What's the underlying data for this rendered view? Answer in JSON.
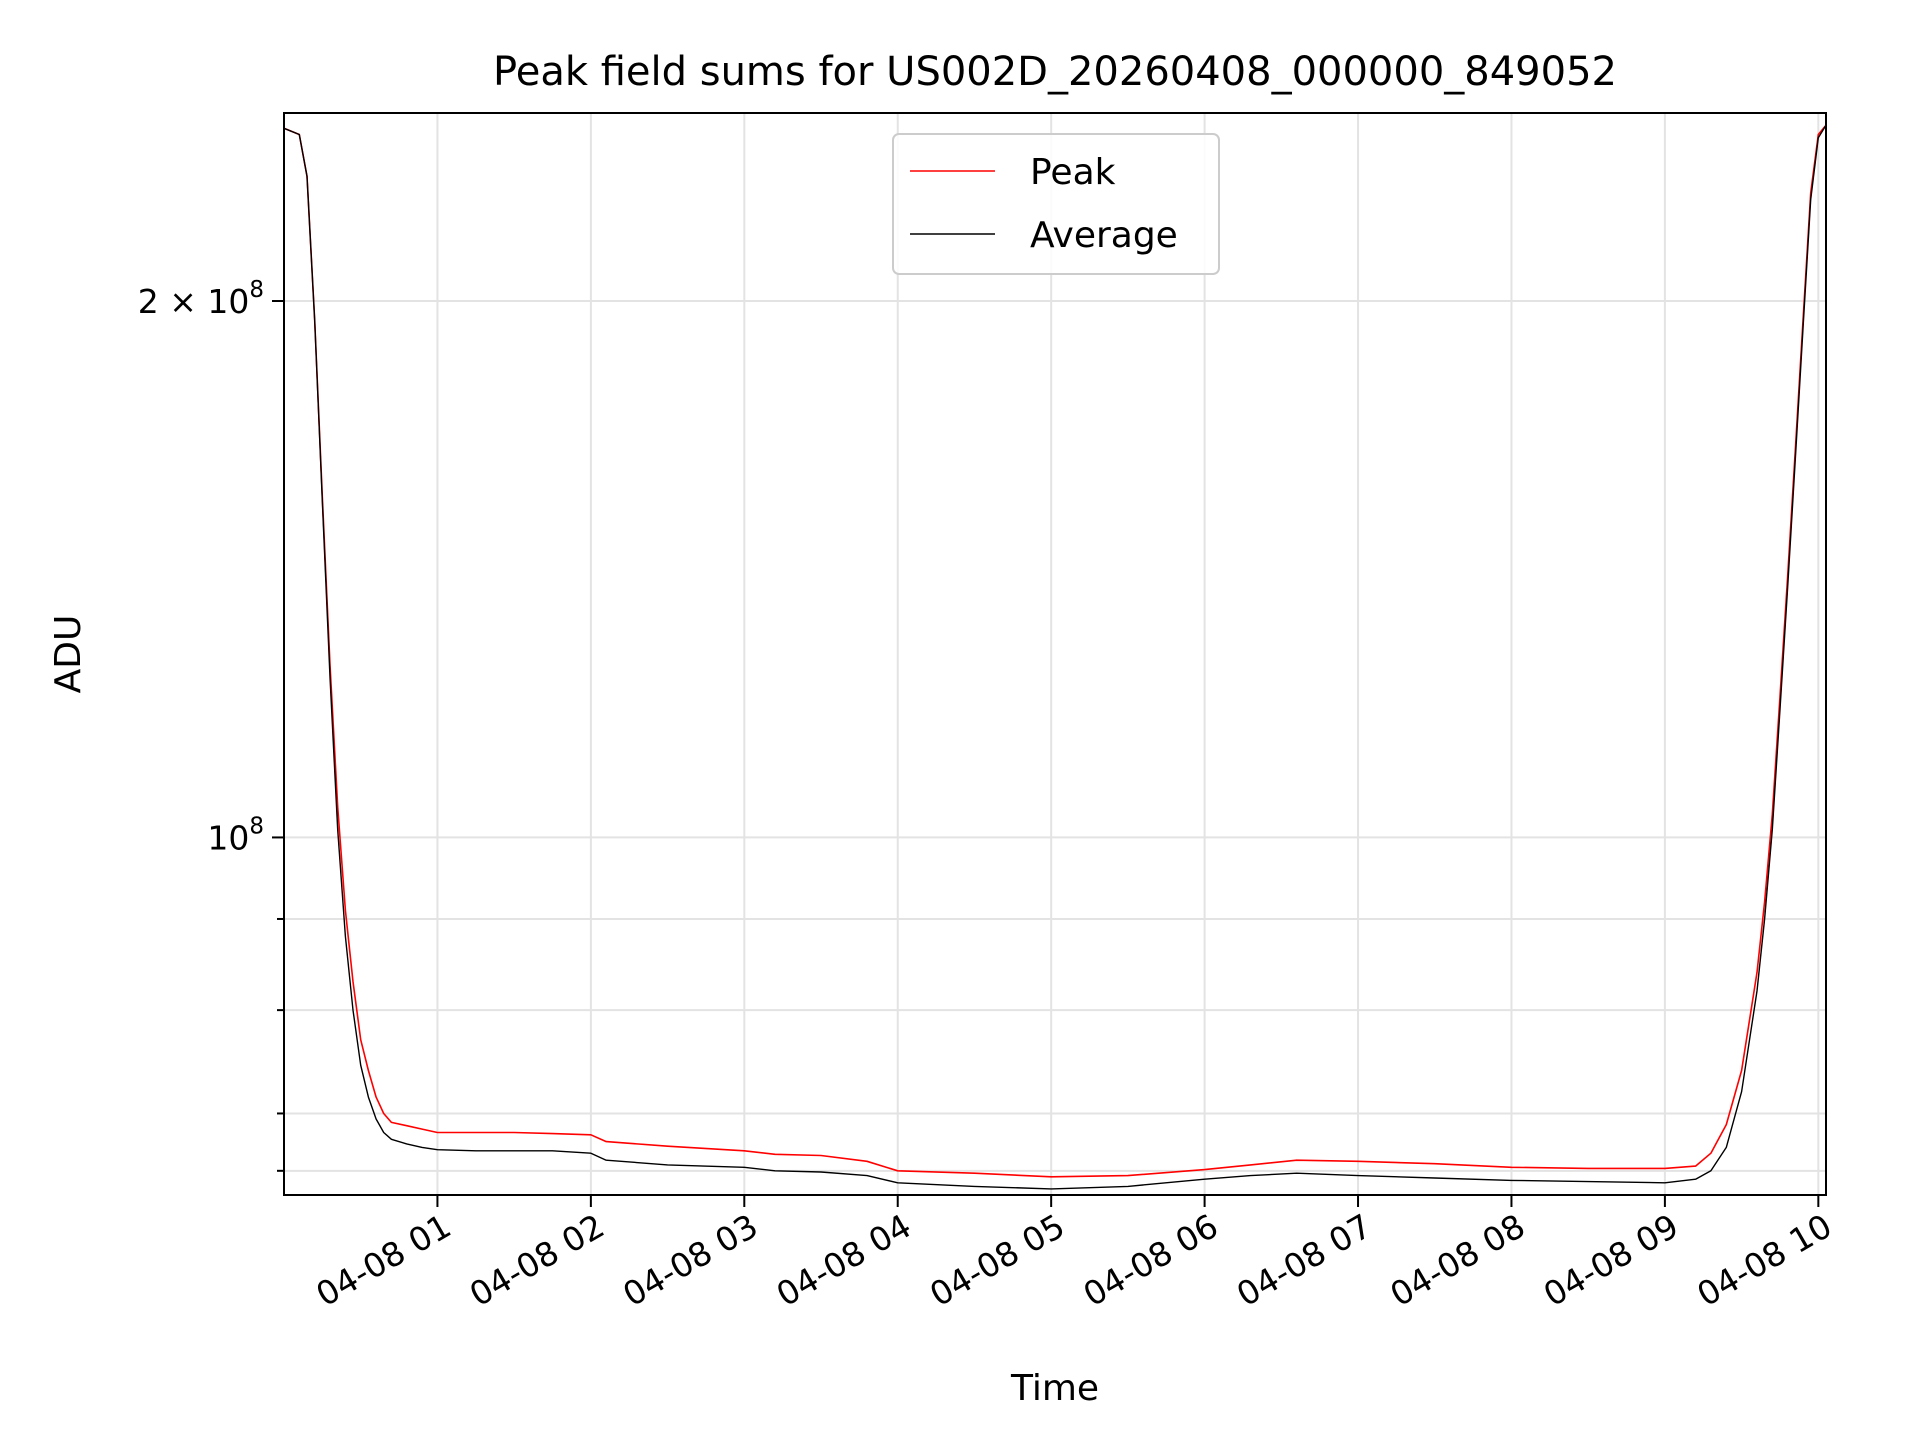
{
  "chart_data": {
    "type": "line",
    "title": "Peak field sums for US002D_20260408_000000_849052",
    "xlabel": "Time",
    "ylabel": "ADU",
    "yscale": "log",
    "grid": true,
    "legend_position": "top-center",
    "x_unit": "hours after 04-08 00:00",
    "xlim": [
      0.0,
      10.05
    ],
    "ylim": [
      63000000,
      255000000
    ],
    "x_ticks": [
      {
        "value": 1,
        "label": "04-08 01"
      },
      {
        "value": 2,
        "label": "04-08 02"
      },
      {
        "value": 3,
        "label": "04-08 03"
      },
      {
        "value": 4,
        "label": "04-08 04"
      },
      {
        "value": 5,
        "label": "04-08 05"
      },
      {
        "value": 6,
        "label": "04-08 06"
      },
      {
        "value": 7,
        "label": "04-08 07"
      },
      {
        "value": 8,
        "label": "04-08 08"
      },
      {
        "value": 9,
        "label": "04-08 09"
      },
      {
        "value": 10,
        "label": "04-08 10"
      }
    ],
    "y_major_ticks": [
      {
        "value": 100000000,
        "base": "10",
        "exp": "8"
      },
      {
        "value": 200000000,
        "base": "2 × 10",
        "exp": "8"
      }
    ],
    "y_minor_ticks": [
      65000000,
      70000000,
      80000000,
      90000000
    ],
    "series": [
      {
        "name": "Peak",
        "color": "#ff0000",
        "x": [
          0.0,
          0.1,
          0.15,
          0.2,
          0.25,
          0.3,
          0.35,
          0.4,
          0.45,
          0.5,
          0.55,
          0.6,
          0.65,
          0.7,
          0.8,
          0.9,
          1.0,
          1.25,
          1.5,
          1.75,
          2.0,
          2.1,
          2.5,
          3.0,
          3.2,
          3.5,
          3.8,
          4.0,
          4.5,
          5.0,
          5.5,
          6.0,
          6.3,
          6.6,
          7.0,
          7.5,
          8.0,
          8.5,
          9.0,
          9.2,
          9.3,
          9.4,
          9.5,
          9.6,
          9.65,
          9.7,
          9.75,
          9.8,
          9.85,
          9.9,
          9.95,
          10.0,
          10.05
        ],
        "values": [
          250000000,
          248000000,
          235000000,
          195000000,
          155000000,
          125000000,
          104000000,
          91000000,
          83000000,
          77000000,
          74000000,
          71500000,
          70000000,
          69200000,
          68900000,
          68600000,
          68300000,
          68300000,
          68300000,
          68200000,
          68100000,
          67500000,
          67100000,
          66700000,
          66400000,
          66300000,
          65800000,
          65000000,
          64800000,
          64500000,
          64600000,
          65100000,
          65500000,
          65900000,
          65800000,
          65600000,
          65300000,
          65200000,
          65200000,
          65400000,
          66500000,
          69000000,
          74000000,
          84000000,
          92000000,
          103000000,
          120000000,
          140000000,
          165000000,
          195000000,
          230000000,
          248000000,
          251000000
        ]
      },
      {
        "name": "Average",
        "color": "#000000",
        "x": [
          0.0,
          0.1,
          0.15,
          0.2,
          0.25,
          0.3,
          0.35,
          0.4,
          0.45,
          0.5,
          0.55,
          0.6,
          0.65,
          0.7,
          0.8,
          0.9,
          1.0,
          1.25,
          1.5,
          1.75,
          2.0,
          2.1,
          2.5,
          3.0,
          3.2,
          3.5,
          3.8,
          4.0,
          4.5,
          5.0,
          5.5,
          6.0,
          6.3,
          6.6,
          7.0,
          7.5,
          8.0,
          8.5,
          9.0,
          9.2,
          9.3,
          9.4,
          9.5,
          9.6,
          9.65,
          9.7,
          9.75,
          9.8,
          9.85,
          9.9,
          9.95,
          10.0,
          10.05
        ],
        "values": [
          250000000,
          248000000,
          235000000,
          195000000,
          154000000,
          123000000,
          101000000,
          88000000,
          80000000,
          74500000,
          71500000,
          69500000,
          68300000,
          67700000,
          67300000,
          67000000,
          66800000,
          66700000,
          66700000,
          66700000,
          66500000,
          65900000,
          65500000,
          65300000,
          65000000,
          64900000,
          64600000,
          64000000,
          63700000,
          63500000,
          63700000,
          64300000,
          64600000,
          64800000,
          64600000,
          64400000,
          64200000,
          64100000,
          64000000,
          64300000,
          65000000,
          67000000,
          72000000,
          82000000,
          90000000,
          101000000,
          118000000,
          138000000,
          163000000,
          193000000,
          228000000,
          247000000,
          251000000
        ]
      }
    ]
  }
}
